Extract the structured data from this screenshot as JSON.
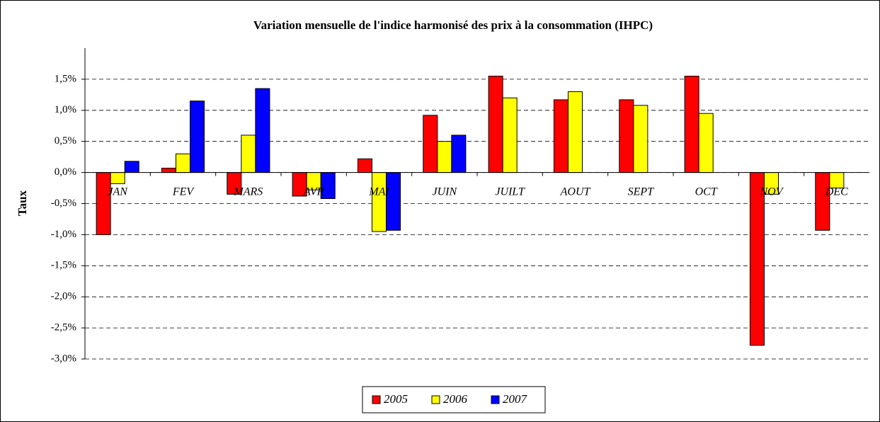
{
  "chart_data": {
    "type": "bar",
    "title": "Variation mensuelle de l'indice harmonisé des prix à la consommation (IHPC)",
    "y_label": "Taux",
    "categories": [
      "JAN",
      "FEV",
      "MARS",
      "AVR",
      "MAI",
      "JUIN",
      "JUILT",
      "AOUT",
      "SEPT",
      "OCT",
      "NOV",
      "DEC"
    ],
    "series": [
      {
        "name": "2005",
        "color": "#ff0000",
        "values": [
          -1.0,
          0.07,
          -0.35,
          -0.38,
          0.22,
          0.92,
          1.55,
          1.17,
          1.17,
          1.55,
          -2.78,
          -0.93
        ]
      },
      {
        "name": "2006",
        "color": "#ffff00",
        "values": [
          -0.18,
          0.3,
          0.6,
          -0.28,
          -0.95,
          0.5,
          1.2,
          1.3,
          1.08,
          0.95,
          -0.35,
          -0.25
        ]
      },
      {
        "name": "2007",
        "color": "#0000ff",
        "values": [
          0.18,
          1.15,
          1.35,
          -0.42,
          -0.93,
          0.6,
          null,
          null,
          null,
          null,
          null,
          null
        ]
      }
    ],
    "ylim": [
      -3,
      2
    ],
    "yticks": [
      {
        "value": -3,
        "label": "-3,0%"
      },
      {
        "value": -2.5,
        "label": "-2,5%"
      },
      {
        "value": -2,
        "label": "-2,0%"
      },
      {
        "value": -1.5,
        "label": "-1,5%"
      },
      {
        "value": -1,
        "label": "-1,0%"
      },
      {
        "value": -0.5,
        "label": "-0,5%"
      },
      {
        "value": 0,
        "label": "0,0%"
      },
      {
        "value": 0.5,
        "label": "0,5%"
      },
      {
        "value": 1,
        "label": "1,0%"
      },
      {
        "value": 1.5,
        "label": "1,5%"
      }
    ],
    "grid": true,
    "legend": "bottom"
  }
}
